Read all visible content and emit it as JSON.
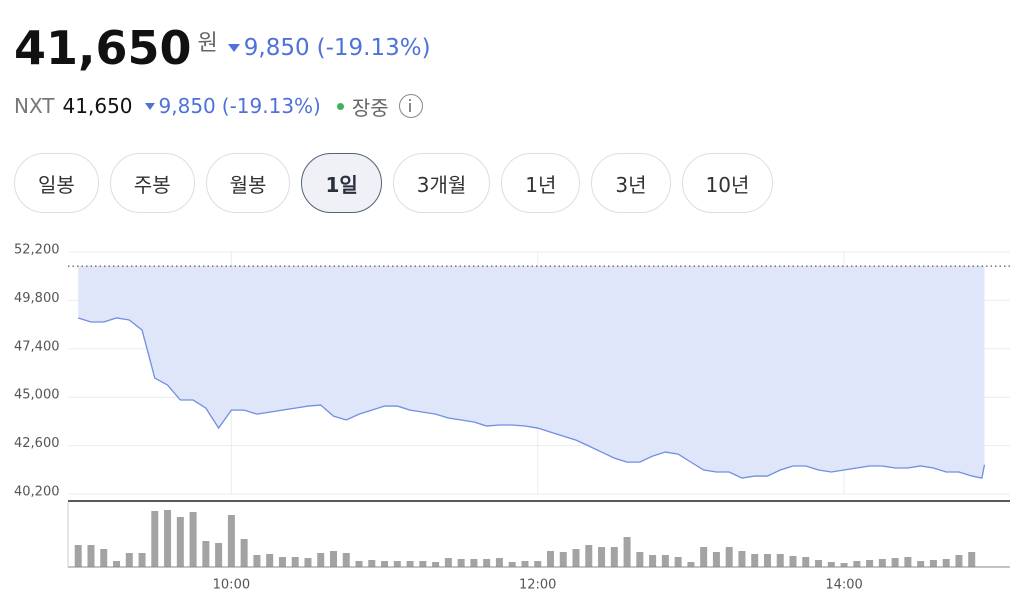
{
  "header": {
    "price": "41,650",
    "unit": "원",
    "change": "9,850",
    "change_rate": "(-19.13%)",
    "nxt_label": "NXT",
    "nxt_price": "41,650",
    "nxt_change": "9,850",
    "nxt_change_rate": "(-19.13%)",
    "status": "장중"
  },
  "tabs": [
    "일봉",
    "주봉",
    "월봉",
    "1일",
    "3개월",
    "1년",
    "3년",
    "10년"
  ],
  "selected_tab": 3,
  "chart_data": [
    {
      "type": "line",
      "color": "#6f8fe0",
      "fill": "#dfe6fa",
      "reference": 51500,
      "x": [
        540,
        545,
        550,
        555,
        560,
        565,
        570,
        575,
        580,
        585,
        590,
        595,
        600,
        605,
        610,
        615,
        620,
        625,
        630,
        635,
        640,
        645,
        650,
        655,
        660,
        665,
        670,
        675,
        680,
        685,
        690,
        695,
        700,
        705,
        710,
        715,
        720,
        725,
        730,
        735,
        740,
        745,
        750,
        755,
        760,
        765,
        770,
        775,
        780,
        785,
        790,
        795,
        800,
        805,
        810,
        815,
        820,
        825,
        830,
        835,
        840,
        845,
        850,
        855,
        860,
        865,
        870,
        875,
        880,
        885,
        890,
        894,
        895
      ],
      "values": [
        48930,
        48730,
        48730,
        48930,
        48830,
        48330,
        45950,
        45600,
        44860,
        44860,
        44460,
        43470,
        44360,
        44360,
        44160,
        44260,
        44360,
        44460,
        44560,
        44610,
        44060,
        43870,
        44160,
        44360,
        44560,
        44560,
        44360,
        44260,
        44160,
        43970,
        43870,
        43770,
        43570,
        43620,
        43620,
        43570,
        43470,
        43270,
        43070,
        42870,
        42580,
        42280,
        41980,
        41780,
        41780,
        42080,
        42280,
        42180,
        41780,
        41390,
        41290,
        41290,
        40990,
        41090,
        41090,
        41390,
        41590,
        41590,
        41390,
        41290,
        41390,
        41490,
        41590,
        41590,
        41490,
        41490,
        41590,
        41490,
        41290,
        41290,
        41090,
        40990,
        41650
      ],
      "xlim": [
        536,
        905
      ],
      "xticks": [
        {
          "value": 600,
          "label": "10:00"
        },
        {
          "value": 720,
          "label": "12:00"
        },
        {
          "value": 840,
          "label": "14:00"
        }
      ],
      "ylim": [
        40200,
        52200
      ],
      "yticks": [
        {
          "value": 40200,
          "label": "40,200"
        },
        {
          "value": 42600,
          "label": "42,600"
        },
        {
          "value": 45000,
          "label": "45,000"
        },
        {
          "value": 47400,
          "label": "47,400"
        },
        {
          "value": 49800,
          "label": "49,800"
        },
        {
          "value": 52200,
          "label": "52,200"
        }
      ],
      "grid": true
    },
    {
      "type": "bar",
      "color": "#a3a3a3",
      "x": [
        540,
        545,
        550,
        555,
        560,
        565,
        570,
        575,
        580,
        585,
        590,
        595,
        600,
        605,
        610,
        615,
        620,
        625,
        630,
        635,
        640,
        645,
        650,
        655,
        660,
        665,
        670,
        675,
        680,
        685,
        690,
        695,
        700,
        705,
        710,
        715,
        720,
        725,
        730,
        735,
        740,
        745,
        750,
        755,
        760,
        765,
        770,
        775,
        780,
        785,
        790,
        795,
        800,
        805,
        810,
        815,
        820,
        825,
        830,
        835,
        840,
        845,
        850,
        855,
        860,
        865,
        870,
        875,
        880,
        885,
        890
      ],
      "values": [
        22,
        22,
        18,
        6,
        14,
        14,
        56,
        57,
        50,
        55,
        26,
        24,
        52,
        28,
        12,
        13,
        10,
        10,
        9,
        14,
        16,
        14,
        6,
        7,
        6,
        6,
        6,
        6,
        5,
        9,
        8,
        8,
        8,
        9,
        5,
        6,
        6,
        16,
        15,
        18,
        22,
        20,
        20,
        30,
        15,
        12,
        12,
        10,
        5,
        20,
        15,
        20,
        16,
        13,
        13,
        13,
        11,
        10,
        7,
        5,
        4,
        6,
        7,
        8,
        9,
        10,
        6,
        7,
        8,
        12,
        15
      ],
      "xlim": [
        536,
        905
      ],
      "ylim": [
        0,
        65
      ]
    }
  ]
}
